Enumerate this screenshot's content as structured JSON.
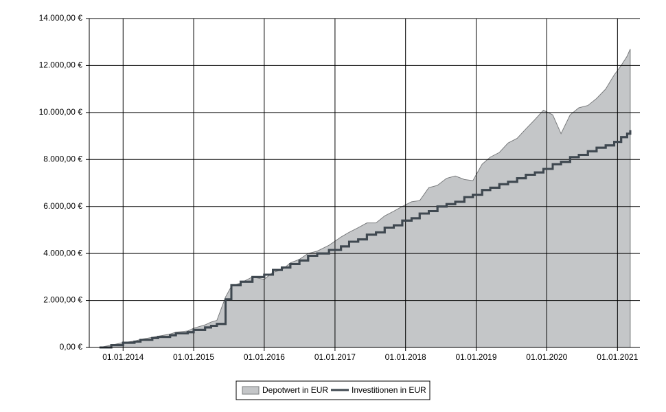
{
  "chart_data": {
    "type": "area-step",
    "x": [
      "2013-09-01",
      "2013-11-01",
      "2014-01-01",
      "2014-03-01",
      "2014-04-01",
      "2014-06-01",
      "2014-07-01",
      "2014-09-01",
      "2014-10-01",
      "2014-12-01",
      "2015-01-01",
      "2015-03-01",
      "2015-04-01",
      "2015-05-01",
      "2015-06-15",
      "2015-07-15",
      "2015-09-01",
      "2015-11-01",
      "2016-01-01",
      "2016-02-15",
      "2016-04-01",
      "2016-05-15",
      "2016-07-01",
      "2016-08-15",
      "2016-10-01",
      "2016-12-01",
      "2017-02-01",
      "2017-03-15",
      "2017-05-01",
      "2017-06-15",
      "2017-08-01",
      "2017-09-15",
      "2017-11-01",
      "2017-12-15",
      "2018-02-01",
      "2018-03-15",
      "2018-05-01",
      "2018-06-15",
      "2018-08-01",
      "2018-09-15",
      "2018-11-01",
      "2018-12-15",
      "2019-02-01",
      "2019-03-15",
      "2019-05-01",
      "2019-06-15",
      "2019-08-01",
      "2019-09-15",
      "2019-11-01",
      "2019-12-15",
      "2020-02-01",
      "2020-03-15",
      "2020-05-01",
      "2020-06-15",
      "2020-08-01",
      "2020-09-15",
      "2020-11-01",
      "2020-12-15",
      "2021-01-20",
      "2021-02-20",
      "2021-03-08"
    ],
    "series": [
      {
        "name": "Depotwert in EUR",
        "color": "#c4c6c8",
        "values": [
          0,
          100,
          210,
          270,
          340,
          430,
          480,
          570,
          650,
          700,
          820,
          960,
          1080,
          1150,
          2150,
          2600,
          2750,
          3000,
          2900,
          3200,
          3300,
          3600,
          3750,
          4000,
          4100,
          4350,
          4700,
          4900,
          5100,
          5300,
          5300,
          5600,
          5800,
          6000,
          6200,
          6250,
          6800,
          6900,
          7200,
          7300,
          7150,
          7100,
          7800,
          8100,
          8300,
          8700,
          8900,
          9300,
          9700,
          10100,
          9900,
          9100,
          9900,
          10200,
          10300,
          10600,
          11000,
          11600,
          12000,
          12400,
          12700
        ]
      },
      {
        "name": "Investitionen in EUR",
        "color": "#3f4850",
        "values": [
          0,
          100,
          200,
          250,
          320,
          400,
          450,
          520,
          600,
          650,
          750,
          850,
          920,
          1000,
          2050,
          2650,
          2800,
          3000,
          3100,
          3300,
          3400,
          3550,
          3700,
          3900,
          4000,
          4150,
          4300,
          4500,
          4600,
          4800,
          4900,
          5100,
          5200,
          5400,
          5500,
          5700,
          5800,
          6000,
          6100,
          6200,
          6400,
          6500,
          6700,
          6800,
          6950,
          7050,
          7200,
          7350,
          7450,
          7600,
          7800,
          7900,
          8100,
          8200,
          8350,
          8500,
          8600,
          8750,
          8950,
          9100,
          9250
        ]
      }
    ],
    "xlim": [
      "2013-07-10",
      "2021-04-27"
    ],
    "xticks": [
      {
        "value": "2014-01-01",
        "label": "01.01.2014"
      },
      {
        "value": "2015-01-01",
        "label": "01.01.2015"
      },
      {
        "value": "2016-01-01",
        "label": "01.01.2016"
      },
      {
        "value": "2017-01-01",
        "label": "01.01.2017"
      },
      {
        "value": "2018-01-01",
        "label": "01.01.2018"
      },
      {
        "value": "2019-01-01",
        "label": "01.01.2019"
      },
      {
        "value": "2020-01-01",
        "label": "01.01.2020"
      },
      {
        "value": "2021-01-01",
        "label": "01.01.2021"
      }
    ],
    "ylim": [
      0,
      14000
    ],
    "yticks": [
      {
        "value": 0,
        "label": "0,00 €"
      },
      {
        "value": 2000,
        "label": "2.000,00 €"
      },
      {
        "value": 4000,
        "label": "4.000,00 €"
      },
      {
        "value": 6000,
        "label": "6.000,00 €"
      },
      {
        "value": 8000,
        "label": "8.000,00 €"
      },
      {
        "value": 10000,
        "label": "10.000,00 €"
      },
      {
        "value": 12000,
        "label": "12.000,00 €"
      },
      {
        "value": 14000,
        "label": "14.000,00 €"
      }
    ],
    "grid": true
  }
}
